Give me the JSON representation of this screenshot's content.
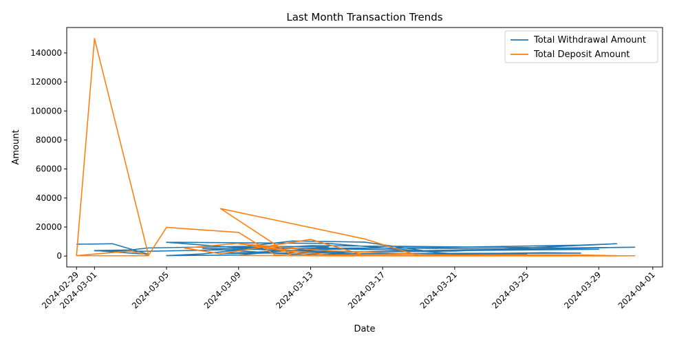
{
  "chart_data": {
    "type": "line",
    "title": "Last Month Transaction Trends",
    "xlabel": "Date",
    "ylabel": "Amount",
    "x_ticks": [
      "2024-02-29",
      "2024-03-01",
      "2024-03-05",
      "2024-03-09",
      "2024-03-13",
      "2024-03-17",
      "2024-03-21",
      "2024-03-25",
      "2024-03-29",
      "2024-04-01"
    ],
    "y_ticks": [
      0,
      20000,
      40000,
      60000,
      80000,
      100000,
      120000,
      140000
    ],
    "xlim": [
      "2024-02-28T11:00",
      "2024-04-01T13:00"
    ],
    "ylim": [
      -7500,
      157500
    ],
    "legend_position": "top-right",
    "grid": false,
    "series": [
      {
        "name": "Total Withdrawal Amount",
        "color": "#1f77b4",
        "points": [
          [
            "2024-02-29",
            8200
          ],
          [
            "2024-03-01",
            8300
          ],
          [
            "2024-03-02",
            8500
          ],
          [
            "2024-03-04",
            1200
          ],
          [
            "2024-03-01",
            3800
          ],
          [
            "2024-03-03",
            4200
          ],
          [
            "2024-03-04",
            5600
          ],
          [
            "2024-03-10",
            6800
          ],
          [
            "2024-03-14",
            6300
          ],
          [
            "2024-03-09",
            700
          ],
          [
            "2024-03-05",
            300
          ],
          [
            "2024-03-07",
            1500
          ],
          [
            "2024-03-09",
            4200
          ],
          [
            "2024-03-13",
            7200
          ],
          [
            "2024-03-18",
            6700
          ],
          [
            "2024-03-27",
            5600
          ],
          [
            "2024-03-31",
            6100
          ],
          [
            "2024-03-20",
            3900
          ],
          [
            "2024-03-14",
            2400
          ],
          [
            "2024-03-08",
            1800
          ],
          [
            "2024-03-15",
            5100
          ],
          [
            "2024-03-22",
            6300
          ],
          [
            "2024-03-28",
            7500
          ],
          [
            "2024-03-30",
            8500
          ],
          [
            "2024-03-21",
            3400
          ],
          [
            "2024-03-16",
            2900
          ],
          [
            "2024-03-11",
            3800
          ],
          [
            "2024-03-05",
            9500
          ],
          [
            "2024-03-14",
            8700
          ],
          [
            "2024-03-21",
            1500
          ],
          [
            "2024-03-26",
            2300
          ],
          [
            "2024-03-28",
            2000
          ],
          [
            "2024-03-18",
            1800
          ],
          [
            "2024-03-12",
            1200
          ],
          [
            "2024-03-07",
            5200
          ],
          [
            "2024-03-17",
            5600
          ],
          [
            "2024-03-25",
            4800
          ],
          [
            "2024-03-29",
            4700
          ],
          [
            "2024-03-20",
            3600
          ],
          [
            "2024-03-13",
            5200
          ],
          [
            "2024-03-09",
            6000
          ],
          [
            "2024-03-12",
            10400
          ],
          [
            "2024-03-16",
            9600
          ],
          [
            "2024-03-21",
            600
          ],
          [
            "2024-03-25",
            1200
          ],
          [
            "2024-03-15",
            1700
          ],
          [
            "2024-03-10",
            4700
          ],
          [
            "2024-03-04",
            3300
          ],
          [
            "2024-03-01",
            3600
          ]
        ]
      },
      {
        "name": "Total Deposit Amount",
        "color": "#ff7f0e",
        "points": [
          [
            "2024-02-29",
            200
          ],
          [
            "2024-03-01",
            149900
          ],
          [
            "2024-03-04",
            500
          ],
          [
            "2024-03-04",
            200
          ],
          [
            "2024-03-02",
            200
          ],
          [
            "2024-02-29",
            300
          ],
          [
            "2024-03-03",
            3500
          ],
          [
            "2024-03-04",
            600
          ],
          [
            "2024-03-05",
            19800
          ],
          [
            "2024-03-09",
            16300
          ],
          [
            "2024-03-11",
            1000
          ],
          [
            "2024-03-12",
            100
          ],
          [
            "2024-03-08",
            32700
          ],
          [
            "2024-03-16",
            11800
          ],
          [
            "2024-03-19",
            300
          ],
          [
            "2024-03-24",
            100
          ],
          [
            "2024-03-31",
            200
          ],
          [
            "2024-03-20",
            400
          ],
          [
            "2024-03-14",
            700
          ],
          [
            "2024-03-09",
            8500
          ],
          [
            "2024-03-14",
            3700
          ],
          [
            "2024-03-20",
            800
          ],
          [
            "2024-03-30",
            100
          ],
          [
            "2024-03-19",
            100
          ],
          [
            "2024-03-09",
            400
          ],
          [
            "2024-03-15",
            100
          ],
          [
            "2024-03-24",
            900
          ],
          [
            "2024-03-28",
            800
          ],
          [
            "2024-03-30",
            200
          ],
          [
            "2024-03-22",
            300
          ],
          [
            "2024-03-16",
            500
          ],
          [
            "2024-03-13",
            11500
          ],
          [
            "2024-03-08",
            1600
          ],
          [
            "2024-03-06",
            5500
          ],
          [
            "2024-03-09",
            8800
          ],
          [
            "2024-03-13",
            500
          ],
          [
            "2024-03-18",
            200
          ],
          [
            "2024-03-25",
            100
          ],
          [
            "2024-03-30",
            300
          ]
        ]
      }
    ]
  }
}
